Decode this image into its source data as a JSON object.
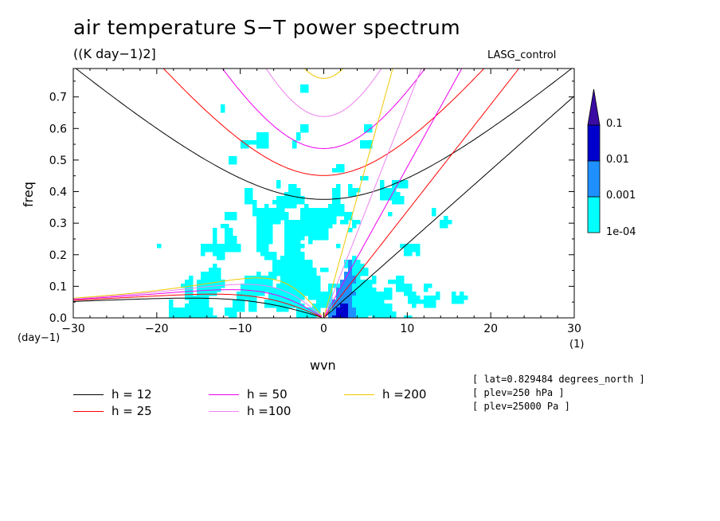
{
  "title": "air temperature S−T power spectrum",
  "units": "((K day−1)2]",
  "run_label": "LASG_control",
  "chart_data": {
    "type": "heatmap",
    "title": "air temperature S−T power spectrum",
    "xlabel": "wvn",
    "ylabel": "freq",
    "x_unit": "(1)",
    "y_unit": "(day−1)",
    "xlim": [
      -30,
      30
    ],
    "ylim": [
      0,
      0.79
    ],
    "x_ticks": [
      -30,
      -20,
      -10,
      0,
      10,
      20,
      30
    ],
    "y_ticks": [
      0.0,
      0.1,
      0.2,
      0.3,
      0.4,
      0.5,
      0.6,
      0.7
    ],
    "x_tick_labels": [
      "−30",
      "−20",
      "−10",
      "0",
      "10",
      "20",
      "30"
    ],
    "y_tick_labels": [
      "0.0",
      "0.1",
      "0.2",
      "0.3",
      "0.4",
      "0.5",
      "0.6",
      "0.7"
    ],
    "colorbar": {
      "levels": [
        "1e-04",
        "0.001",
        "0.01",
        "0.1"
      ],
      "colors": [
        "#00ffff",
        "#1e90ff",
        "#0000cd",
        "#3a0ca3"
      ]
    },
    "dispersion_curves": [
      {
        "name": "h = 12",
        "h": 12,
        "color": "#000000"
      },
      {
        "name": "h = 25",
        "h": 25,
        "color": "#ff0000"
      },
      {
        "name": "h = 50",
        "h": 50,
        "color": "#ee00ee"
      },
      {
        "name": "h =100",
        "h": 100,
        "color": "#ee82ee"
      },
      {
        "name": "h =200",
        "h": 200,
        "color": "#f0c800"
      }
    ]
  },
  "info_lines": [
    "[ lat=0.829484 degrees_north ]",
    "[ plev=250 hPa ]",
    "[ plev=25000 Pa ]"
  ]
}
